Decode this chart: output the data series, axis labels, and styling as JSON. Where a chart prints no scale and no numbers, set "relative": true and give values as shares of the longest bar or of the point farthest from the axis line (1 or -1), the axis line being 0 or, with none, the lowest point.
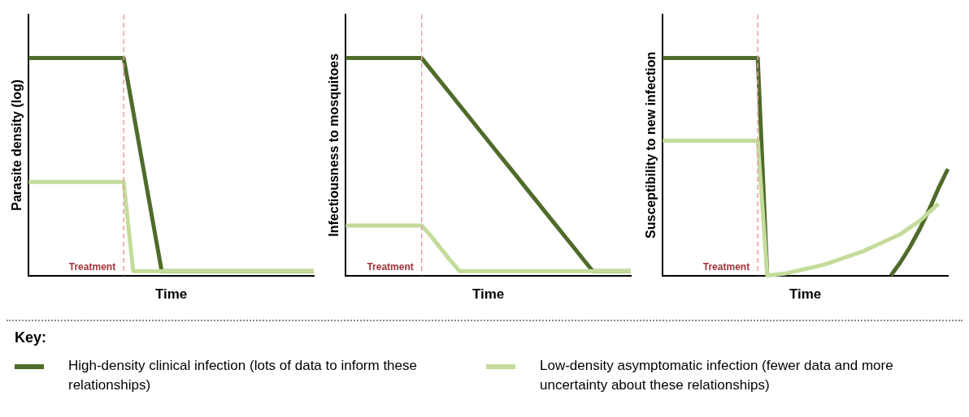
{
  "chart_data": [
    {
      "type": "line",
      "ylabel": "Parasite density (log)",
      "xlabel": "Time",
      "relative": true,
      "legend": "bottom",
      "legend_title": "Key:",
      "grid": false,
      "categories": [
        null,
        null,
        null,
        null,
        null,
        null,
        null,
        null,
        null,
        null,
        null,
        null,
        null,
        null,
        null,
        null,
        null,
        null,
        null,
        null,
        null,
        null,
        null,
        null,
        null,
        null,
        null,
        null,
        null,
        null,
        null
      ],
      "series": [
        {
          "name": "High-density clinical infection (lots of data to inform these relationships)",
          "color": "#4f6b2a",
          "values": [
            1,
            1,
            1,
            1,
            1,
            1,
            1,
            1,
            1,
            1,
            1,
            0.755,
            0.51,
            0.265,
            0.02,
            0.02,
            0.02,
            0.02,
            0.02,
            0.02,
            0.02,
            0.02,
            0.02,
            0.02,
            0.02,
            0.02,
            0.02,
            0.02,
            0.02,
            0.02,
            0.02
          ]
        },
        {
          "name": "Low-density asymptomatic infection (fewer data and more uncertainty about these relationships)",
          "color": "#c4dc9b",
          "values": [
            0.43,
            0.43,
            0.43,
            0.43,
            0.43,
            0.43,
            0.43,
            0.43,
            0.43,
            0.43,
            0.43,
            0.02,
            0.02,
            0.02,
            0.02,
            0.02,
            0.02,
            0.02,
            0.02,
            0.02,
            0.02,
            0.02,
            0.02,
            0.02,
            0.02,
            0.02,
            0.02,
            0.02,
            0.02,
            0.02,
            0.02
          ]
        }
      ],
      "annotations": [
        "Treatment"
      ]
    },
    {
      "type": "line",
      "ylabel": "Infectiousness to mosquitoes",
      "xlabel": "Time",
      "relative": true,
      "grid": false,
      "categories": [
        null,
        null,
        null,
        null,
        null,
        null,
        null,
        null,
        null,
        null,
        null,
        null,
        null,
        null,
        null,
        null,
        null,
        null,
        null,
        null,
        null,
        null,
        null,
        null,
        null,
        null,
        null,
        null,
        null,
        null,
        null
      ],
      "series": [
        {
          "color": "#4f6b2a",
          "values": [
            1,
            1,
            1,
            1,
            1,
            1,
            1,
            1,
            1,
            0.946,
            0.891,
            0.837,
            0.782,
            0.728,
            0.673,
            0.619,
            0.564,
            0.51,
            0.456,
            0.401,
            0.347,
            0.292,
            0.238,
            0.183,
            0.129,
            0.074,
            0.02,
            0.02,
            0.02,
            0.02,
            0.02
          ]
        },
        {
          "color": "#c4dc9b",
          "values": [
            0.23,
            0.23,
            0.23,
            0.23,
            0.23,
            0.23,
            0.23,
            0.23,
            0.23,
            0.18,
            0.125,
            0.07,
            0.02,
            0.02,
            0.02,
            0.02,
            0.02,
            0.02,
            0.02,
            0.02,
            0.02,
            0.02,
            0.02,
            0.02,
            0.02,
            0.02,
            0.02,
            0.02,
            0.02,
            0.02,
            0.02
          ]
        }
      ],
      "annotations": [
        "Treatment"
      ]
    },
    {
      "type": "line",
      "ylabel": "Susceptibility to new infection",
      "xlabel": "Time",
      "relative": true,
      "grid": false,
      "categories": [
        null,
        null,
        null,
        null,
        null,
        null,
        null,
        null,
        null,
        null,
        null,
        null,
        null,
        null,
        null,
        null,
        null,
        null,
        null,
        null,
        null,
        null,
        null,
        null,
        null,
        null,
        null,
        null,
        null,
        null,
        null
      ],
      "series": [
        {
          "color": "#4f6b2a",
          "values": [
            1,
            1,
            1,
            1,
            1,
            1,
            1,
            1,
            1,
            1,
            1,
            0,
            null,
            null,
            null,
            null,
            null,
            null,
            null,
            null,
            null,
            null,
            null,
            null,
            0,
            0.06,
            0.13,
            0.21,
            0.3,
            0.4,
            0.49
          ]
        },
        {
          "color": "#c4dc9b",
          "values": [
            0.62,
            0.62,
            0.62,
            0.62,
            0.62,
            0.62,
            0.62,
            0.62,
            0.62,
            0.62,
            0.62,
            0,
            0.005,
            0.01,
            0.02,
            0.03,
            0.04,
            0.05,
            0.065,
            0.08,
            0.095,
            0.11,
            0.13,
            0.15,
            0.17,
            0.19,
            0.22,
            0.25,
            0.29,
            0.33,
            null
          ]
        }
      ],
      "annotations": [
        "Treatment"
      ]
    }
  ]
}
